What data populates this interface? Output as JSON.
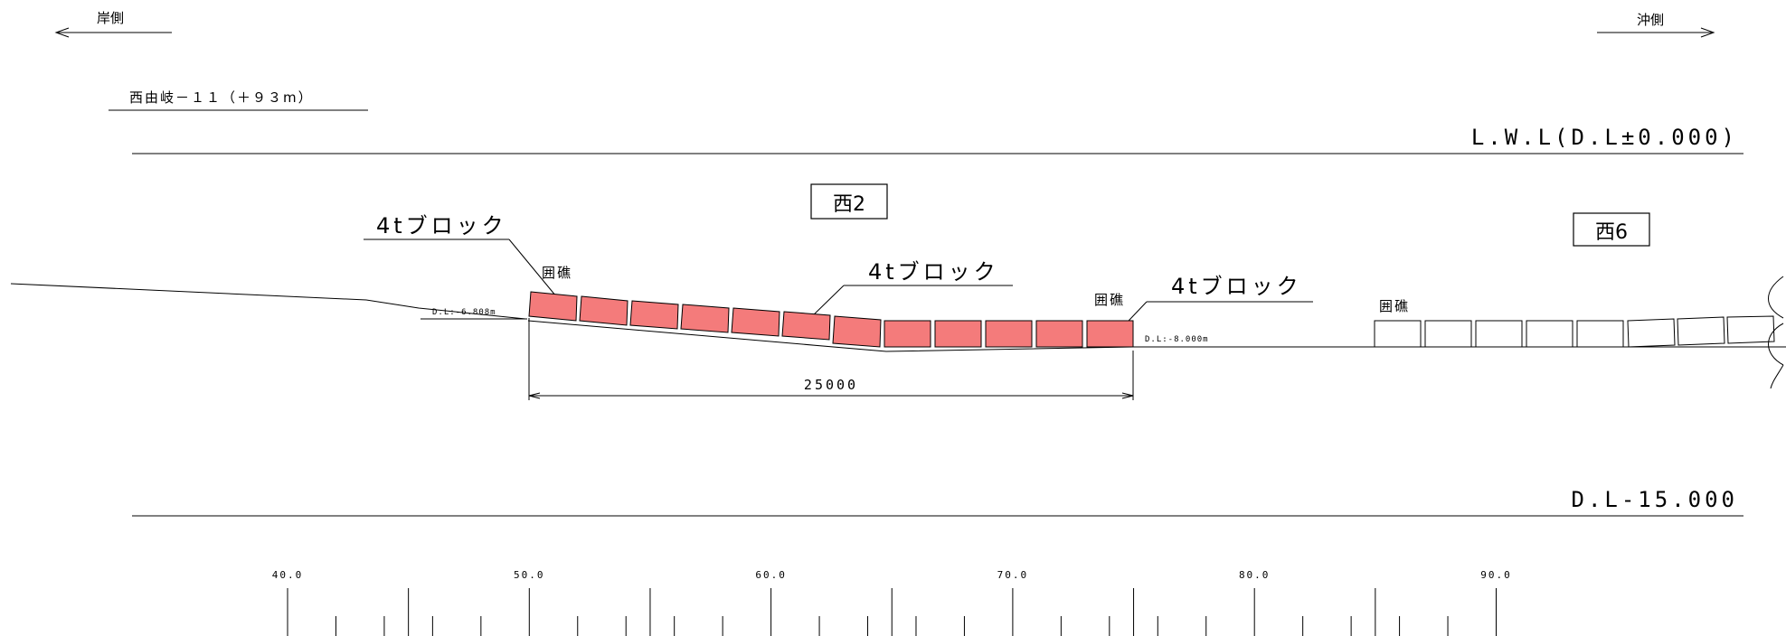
{
  "header": {
    "shore_side": "岸側",
    "offshore_side": "沖側",
    "section_name": "西由岐－１１（＋９３m）"
  },
  "levels": {
    "lwl": "L.W.L(D.L±0.000)",
    "bottom": "D.L-15.000"
  },
  "zones": {
    "west2": "西2",
    "west6": "西6"
  },
  "labels": {
    "block_left": "4tブロック",
    "block_mid": "4tブロック",
    "block_right": "4tブロック",
    "kakoiso_1": "囲礁",
    "kakoiso_2": "囲礁",
    "kakoiso_3": "囲礁",
    "depth_left": "D.L:-6.808m",
    "depth_right": "D.L:-8.000m",
    "dimension": "25000"
  },
  "colors": {
    "block_fill": "#f47b7b",
    "line": "#000000"
  },
  "scale": {
    "labels": [
      "40.0",
      "50.0",
      "60.0",
      "70.0",
      "80.0",
      "90.0"
    ]
  }
}
